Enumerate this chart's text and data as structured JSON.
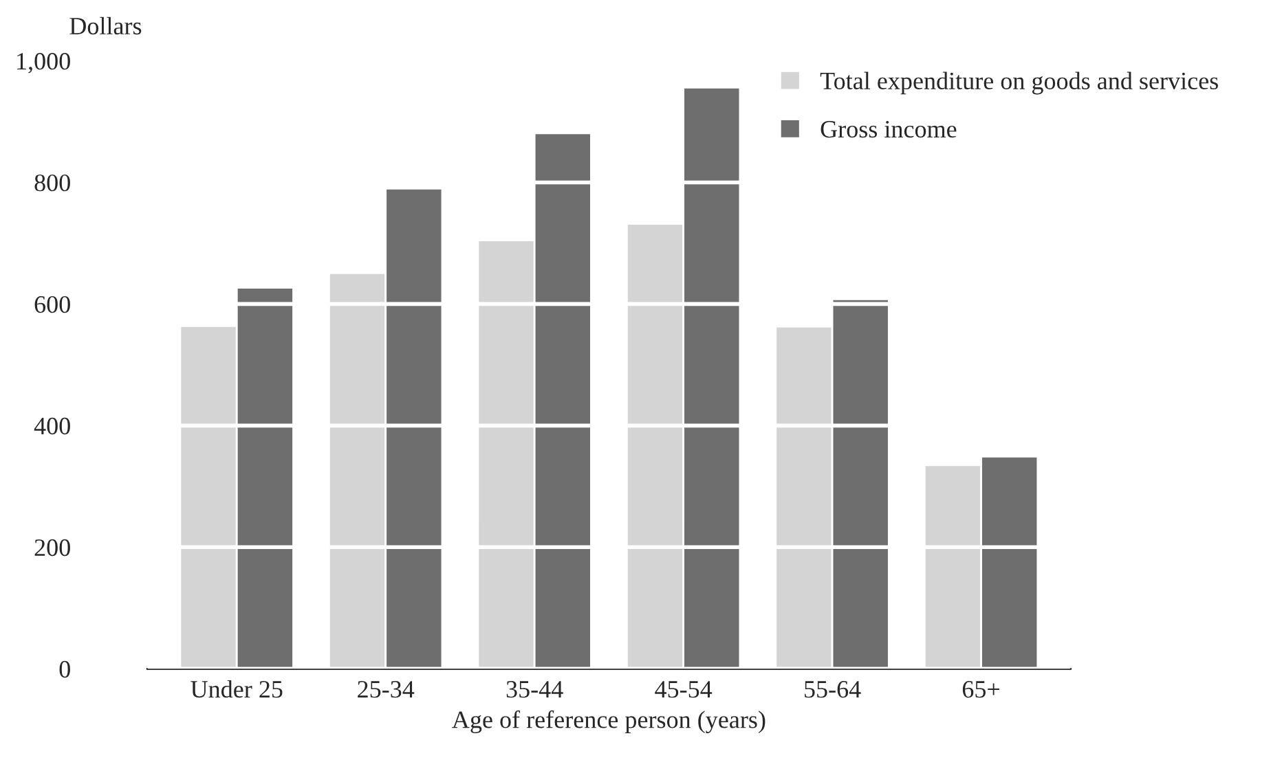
{
  "chart_data": {
    "type": "bar",
    "categories": [
      "Under 25",
      "25-34",
      "35-44",
      "45-54",
      "55-64",
      "65+"
    ],
    "series": [
      {
        "name": "Total expenditure on goods and services",
        "color": "#d4d4d4",
        "values": [
          564,
          651,
          705,
          732,
          563,
          335
        ]
      },
      {
        "name": "Gross income",
        "color": "#6e6e6e",
        "values": [
          627,
          790,
          881,
          956,
          608,
          349
        ]
      }
    ],
    "ylabel": "Dollars",
    "xlabel": "Age of reference person (years)",
    "ylim": [
      0,
      1000
    ],
    "yticks": [
      0,
      200,
      400,
      600,
      800,
      {
        "value": 1000,
        "label": "1,000"
      }
    ],
    "grid": "y",
    "legend": "top right"
  }
}
